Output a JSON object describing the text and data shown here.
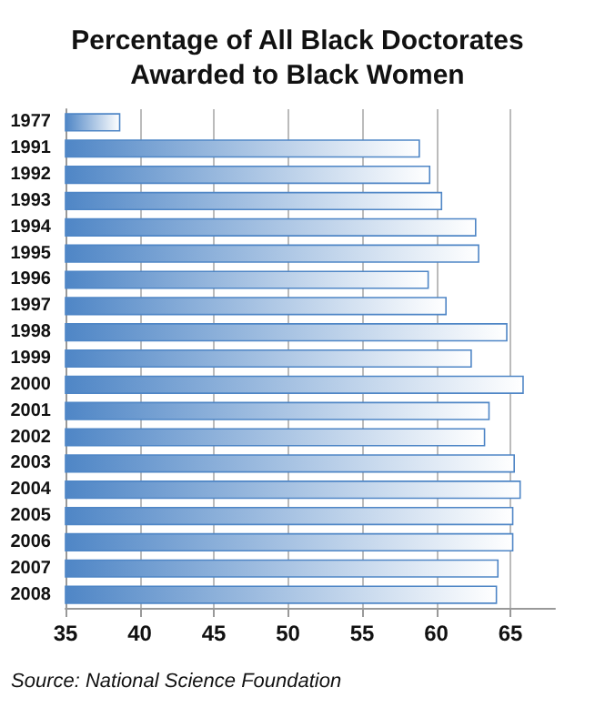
{
  "chart_data": {
    "type": "bar",
    "orientation": "horizontal",
    "title": "Percentage of All Black Doctorates\nAwarded to Black Women",
    "categories": [
      "1977",
      "1991",
      "1992",
      "1993",
      "1994",
      "1995",
      "1996",
      "1997",
      "1998",
      "1999",
      "2000",
      "2001",
      "2002",
      "2003",
      "2004",
      "2005",
      "2006",
      "2007",
      "2008"
    ],
    "values": [
      38.7,
      58.9,
      59.6,
      60.4,
      62.7,
      62.9,
      59.5,
      60.7,
      64.8,
      62.4,
      65.9,
      63.6,
      63.3,
      65.3,
      65.7,
      65.2,
      65.2,
      64.2,
      64.1
    ],
    "color": "#4f86c6",
    "xlim": [
      35,
      68
    ],
    "xticks": [
      35,
      40,
      45,
      50,
      55,
      60,
      65
    ],
    "grid": "x",
    "annotations": [
      "Source: National Science Foundation"
    ]
  }
}
